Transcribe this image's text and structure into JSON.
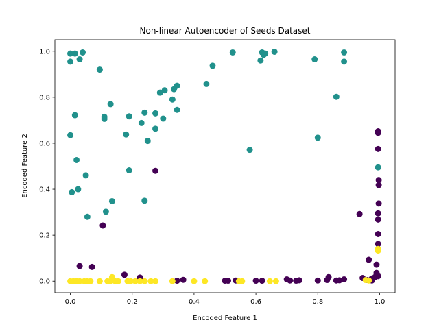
{
  "chart_data": {
    "type": "scatter",
    "title": "Non-linear Autoencoder of Seeds Dataset",
    "xlabel": "Encoded Feature 1",
    "ylabel": "Encoded Feature 2",
    "xlim": [
      -0.05,
      1.05
    ],
    "ylim": [
      -0.05,
      1.05
    ],
    "xticks": [
      "0.0",
      "0.2",
      "0.4",
      "0.6",
      "0.8",
      "1.0"
    ],
    "yticks": [
      "0.0",
      "0.2",
      "0.4",
      "0.6",
      "0.8",
      "1.0"
    ],
    "grid": false,
    "legend": "none",
    "colors": {
      "class0": "#440154",
      "class1": "#21918c",
      "class2": "#fde725"
    },
    "series": [
      {
        "color_key": "class1",
        "points": [
          [
            0.0,
            0.99
          ],
          [
            0.015,
            0.99
          ],
          [
            0.04,
            0.995
          ],
          [
            0.0,
            0.955
          ],
          [
            0.03,
            0.965
          ],
          [
            0.095,
            0.92
          ],
          [
            0.525,
            0.995
          ],
          [
            0.62,
            0.995
          ],
          [
            0.63,
            0.99
          ],
          [
            0.66,
            0.998
          ],
          [
            0.615,
            0.96
          ],
          [
            0.625,
            0.985
          ],
          [
            0.79,
            0.965
          ],
          [
            0.885,
            0.995
          ],
          [
            0.885,
            0.955
          ],
          [
            0.46,
            0.937
          ],
          [
            0.44,
            0.858
          ],
          [
            0.345,
            0.85
          ],
          [
            0.335,
            0.835
          ],
          [
            0.305,
            0.83
          ],
          [
            0.29,
            0.82
          ],
          [
            0.33,
            0.79
          ],
          [
            0.13,
            0.77
          ],
          [
            0.86,
            0.802
          ],
          [
            0.345,
            0.745
          ],
          [
            0.24,
            0.733
          ],
          [
            0.275,
            0.73
          ],
          [
            0.015,
            0.722
          ],
          [
            0.19,
            0.717
          ],
          [
            0.11,
            0.715
          ],
          [
            0.11,
            0.706
          ],
          [
            0.3,
            0.707
          ],
          [
            0.23,
            0.688
          ],
          [
            0.275,
            0.663
          ],
          [
            0.18,
            0.638
          ],
          [
            0.0,
            0.635
          ],
          [
            0.8,
            0.624
          ],
          [
            0.25,
            0.61
          ],
          [
            0.58,
            0.571
          ],
          [
            0.02,
            0.527
          ],
          [
            0.19,
            0.482
          ],
          [
            0.995,
            0.495
          ],
          [
            0.05,
            0.46
          ],
          [
            0.025,
            0.4
          ],
          [
            0.005,
            0.387
          ],
          [
            0.24,
            0.35
          ],
          [
            0.135,
            0.348
          ],
          [
            0.115,
            0.302
          ],
          [
            0.055,
            0.28
          ]
        ]
      },
      {
        "color_key": "class0",
        "points": [
          [
            0.995,
            0.652
          ],
          [
            0.995,
            0.645
          ],
          [
            0.995,
            0.575
          ],
          [
            0.275,
            0.48
          ],
          [
            0.997,
            0.44
          ],
          [
            0.997,
            0.418
          ],
          [
            0.997,
            0.338
          ],
          [
            0.935,
            0.292
          ],
          [
            0.995,
            0.295
          ],
          [
            0.995,
            0.268
          ],
          [
            0.105,
            0.242
          ],
          [
            0.995,
            0.205
          ],
          [
            0.995,
            0.162
          ],
          [
            0.965,
            0.093
          ],
          [
            0.99,
            0.072
          ],
          [
            0.03,
            0.066
          ],
          [
            0.07,
            0.062
          ],
          [
            0.175,
            0.028
          ],
          [
            0.225,
            0.016
          ],
          [
            0.99,
            0.036
          ],
          [
            0.99,
            0.028
          ],
          [
            0.995,
            0.022
          ],
          [
            0.985,
            0.018
          ],
          [
            0.945,
            0.014
          ],
          [
            0.975,
            0.012
          ],
          [
            0.835,
            0.018
          ],
          [
            0.83,
            0.005
          ],
          [
            0.86,
            0.003
          ],
          [
            0.87,
            0.004
          ],
          [
            0.885,
            0.008
          ],
          [
            0.7,
            0.008
          ],
          [
            0.71,
            0.003
          ],
          [
            0.73,
            0.002
          ],
          [
            0.74,
            0.004
          ],
          [
            0.8,
            0.003
          ],
          [
            0.6,
            0.002
          ],
          [
            0.62,
            0.002
          ],
          [
            0.535,
            0.003
          ],
          [
            0.51,
            0.002
          ],
          [
            0.5,
            0.002
          ],
          [
            0.345,
            0.002
          ],
          [
            0.365,
            0.006
          ],
          [
            0.975,
            0.003
          ],
          [
            0.96,
            0.005
          ]
        ]
      },
      {
        "color_key": "class2",
        "points": [
          [
            0.995,
            0.14
          ],
          [
            0.995,
            0.133
          ],
          [
            0.965,
            0.003
          ],
          [
            0.0,
            0.0
          ],
          [
            0.01,
            0.0
          ],
          [
            0.02,
            0.0
          ],
          [
            0.03,
            0.0
          ],
          [
            0.045,
            0.0
          ],
          [
            0.055,
            0.0
          ],
          [
            0.065,
            0.0
          ],
          [
            0.095,
            0.0
          ],
          [
            0.12,
            0.0
          ],
          [
            0.13,
            0.0
          ],
          [
            0.135,
            0.018
          ],
          [
            0.145,
            0.0
          ],
          [
            0.155,
            0.0
          ],
          [
            0.185,
            0.0
          ],
          [
            0.195,
            0.0
          ],
          [
            0.21,
            0.0
          ],
          [
            0.225,
            0.0
          ],
          [
            0.24,
            0.0
          ],
          [
            0.26,
            0.0
          ],
          [
            0.275,
            0.0
          ],
          [
            0.33,
            0.0
          ],
          [
            0.4,
            0.0
          ],
          [
            0.435,
            0.0
          ],
          [
            0.545,
            0.0
          ],
          [
            0.555,
            0.0
          ],
          [
            0.645,
            0.0
          ],
          [
            0.665,
            0.0
          ],
          [
            0.955,
            0.005
          ]
        ]
      }
    ]
  }
}
